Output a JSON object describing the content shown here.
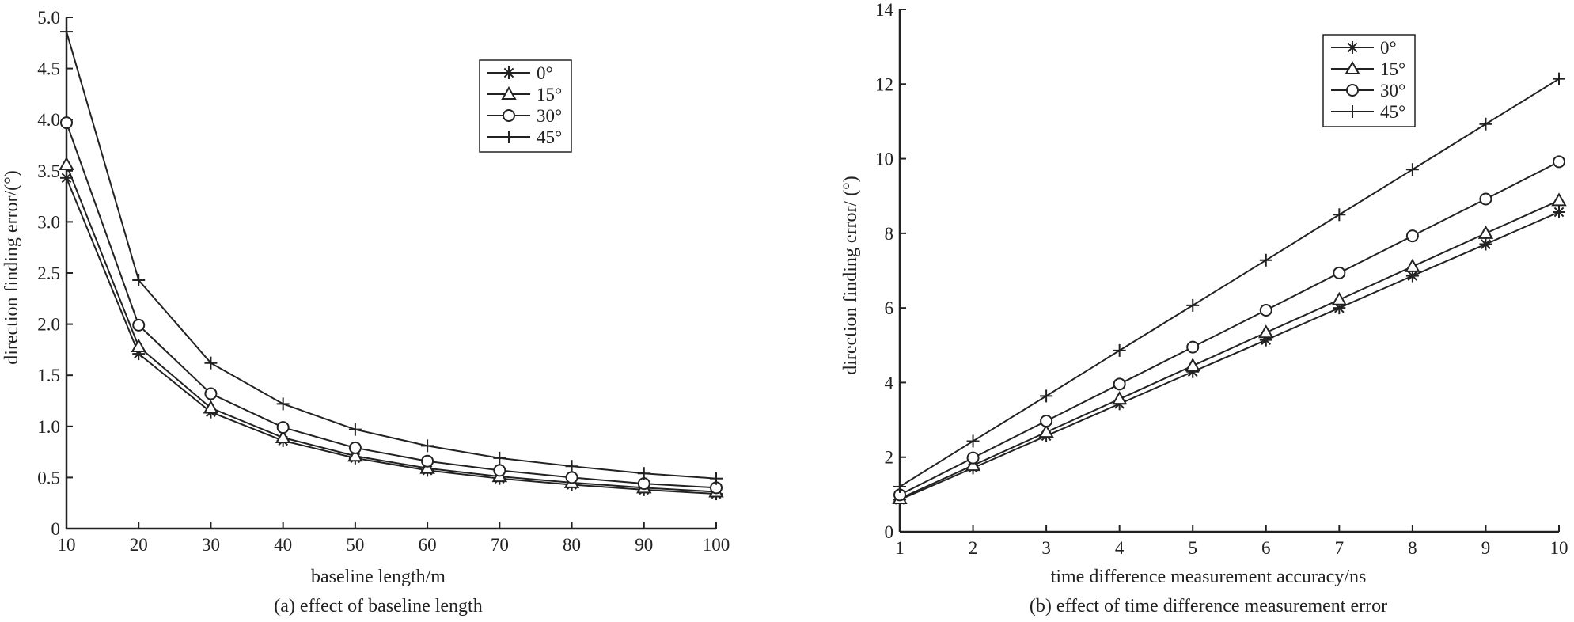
{
  "chart_data": [
    {
      "type": "line",
      "caption": "(a) effect of baseline length",
      "xlabel": "baseline length/m",
      "ylabel": "direction finding error/(°)",
      "x": [
        10,
        20,
        30,
        40,
        50,
        60,
        70,
        80,
        90,
        100
      ],
      "xticks": [
        "10",
        "20",
        "30",
        "40",
        "50",
        "60",
        "70",
        "80",
        "90",
        "100"
      ],
      "yticks": [
        "0",
        "0.5",
        "1.0",
        "1.5",
        "2.0",
        "2.5",
        "3.0",
        "3.5",
        "4.0",
        "4.5",
        "5.0"
      ],
      "xlim": [
        10,
        100
      ],
      "ylim": [
        0,
        5
      ],
      "grid": false,
      "legend_position": "top-right",
      "series": [
        {
          "name": "0°",
          "marker": "asterisk",
          "values": [
            3.43,
            1.71,
            1.14,
            0.86,
            0.69,
            0.57,
            0.49,
            0.43,
            0.38,
            0.34
          ]
        },
        {
          "name": "15°",
          "marker": "triangle",
          "values": [
            3.56,
            1.78,
            1.18,
            0.89,
            0.71,
            0.59,
            0.51,
            0.45,
            0.4,
            0.36
          ]
        },
        {
          "name": "30°",
          "marker": "circle",
          "values": [
            3.97,
            1.99,
            1.32,
            0.99,
            0.79,
            0.66,
            0.57,
            0.5,
            0.44,
            0.4
          ]
        },
        {
          "name": "45°",
          "marker": "plus",
          "values": [
            4.86,
            2.43,
            1.62,
            1.22,
            0.97,
            0.81,
            0.69,
            0.61,
            0.54,
            0.49
          ]
        }
      ]
    },
    {
      "type": "line",
      "caption": "(b) effect of time difference measurement error",
      "xlabel": "time difference measurement accuracy/ns",
      "ylabel": "direction finding error/ (°)",
      "x": [
        1,
        2,
        3,
        4,
        5,
        6,
        7,
        8,
        9,
        10
      ],
      "xticks": [
        "1",
        "2",
        "3",
        "4",
        "5",
        "6",
        "7",
        "8",
        "9",
        "10"
      ],
      "yticks": [
        "0",
        "2",
        "4",
        "6",
        "8",
        "10",
        "12",
        "14"
      ],
      "xlim": [
        1,
        10
      ],
      "ylim": [
        0,
        14
      ],
      "grid": false,
      "legend_position": "top-right",
      "series": [
        {
          "name": "0°",
          "marker": "asterisk",
          "values": [
            0.86,
            1.71,
            2.57,
            3.43,
            4.29,
            5.14,
            6.0,
            6.86,
            7.71,
            8.57
          ]
        },
        {
          "name": "15°",
          "marker": "triangle",
          "values": [
            0.89,
            1.78,
            2.67,
            3.56,
            4.45,
            5.34,
            6.22,
            7.11,
            8.0,
            8.88
          ]
        },
        {
          "name": "30°",
          "marker": "circle",
          "values": [
            0.99,
            1.98,
            2.97,
            3.96,
            4.95,
            5.94,
            6.94,
            7.93,
            8.92,
            9.92
          ]
        },
        {
          "name": "45°",
          "marker": "plus",
          "values": [
            1.21,
            2.43,
            3.64,
            4.86,
            6.07,
            7.28,
            8.5,
            9.71,
            10.93,
            12.14
          ]
        }
      ]
    }
  ]
}
